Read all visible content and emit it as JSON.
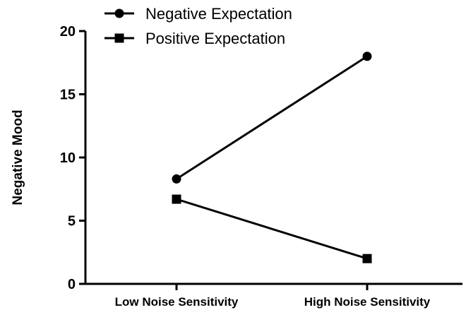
{
  "chart_data": {
    "type": "line",
    "title": "",
    "xlabel": "",
    "ylabel": "Negative Mood",
    "categories": [
      "Low Noise Sensitivity",
      "High Noise Sensitivity"
    ],
    "ylim": [
      0,
      20
    ],
    "yticks": [
      0,
      5,
      10,
      15,
      20
    ],
    "grid": false,
    "legend_position": "top-left",
    "series": [
      {
        "name": "Negative Expectation",
        "marker": "circle",
        "values": [
          8.3,
          18.0
        ]
      },
      {
        "name": "Positive Expectation",
        "marker": "square",
        "values": [
          6.7,
          2.0
        ]
      }
    ]
  }
}
